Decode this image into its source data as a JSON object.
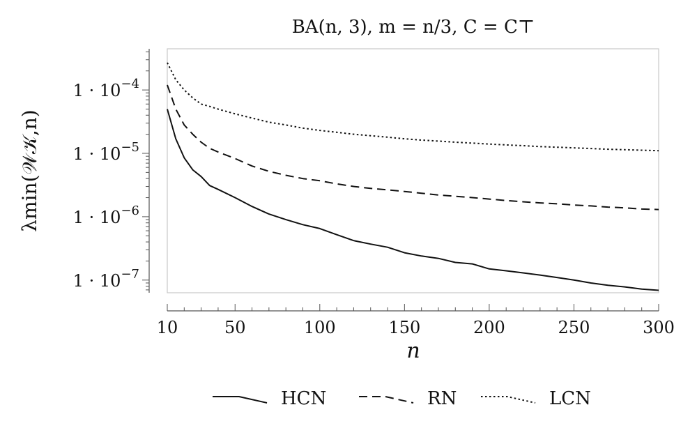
{
  "chart_data": {
    "type": "line",
    "title": "BA(n, 3), m = n/3, C = C⊤",
    "xlabel": "n",
    "ylabel": "λmin(𝒲𝒦,n)",
    "xlim": [
      10,
      300
    ],
    "ylim_log10": [
      -7.2,
      -3.35
    ],
    "yscale": "log",
    "xticks": [
      10,
      50,
      100,
      150,
      200,
      250,
      300
    ],
    "yticks": [
      {
        "value": 1e-07,
        "base": "1 · 10",
        "exp": "−7"
      },
      {
        "value": 1e-06,
        "base": "1 · 10",
        "exp": "−6"
      },
      {
        "value": 1e-05,
        "base": "1 · 10",
        "exp": "−5"
      },
      {
        "value": 0.0001,
        "base": "1 · 10",
        "exp": "−4"
      }
    ],
    "legend_position": "bottom",
    "series": [
      {
        "name": "HCN",
        "style": "solid",
        "x": [
          10,
          15,
          20,
          25,
          30,
          35,
          40,
          50,
          60,
          70,
          80,
          90,
          100,
          110,
          120,
          130,
          140,
          150,
          160,
          170,
          180,
          190,
          200,
          210,
          220,
          230,
          240,
          250,
          260,
          270,
          280,
          290,
          300
        ],
        "values": [
          5e-05,
          1.7e-05,
          8.5e-06,
          5.5e-06,
          4.3e-06,
          3.1e-06,
          2.7e-06,
          2e-06,
          1.45e-06,
          1.1e-06,
          9e-07,
          7.5e-07,
          6.5e-07,
          5.2e-07,
          4.2e-07,
          3.7e-07,
          3.3e-07,
          2.7e-07,
          2.4e-07,
          2.2e-07,
          1.9e-07,
          1.8e-07,
          1.5e-07,
          1.4e-07,
          1.3e-07,
          1.2e-07,
          1.1e-07,
          1e-07,
          9e-08,
          8.3e-08,
          7.8e-08,
          7.2e-08,
          6.9e-08
        ]
      },
      {
        "name": "RN",
        "style": "dashed",
        "x": [
          10,
          15,
          20,
          25,
          30,
          35,
          40,
          50,
          60,
          70,
          80,
          90,
          100,
          110,
          120,
          130,
          140,
          150,
          160,
          170,
          180,
          190,
          200,
          210,
          220,
          230,
          240,
          250,
          260,
          270,
          280,
          290,
          300
        ],
        "values": [
          0.00012,
          5e-05,
          2.8e-05,
          2e-05,
          1.5e-05,
          1.2e-05,
          1.05e-05,
          8.3e-06,
          6.3e-06,
          5.2e-06,
          4.5e-06,
          4e-06,
          3.7e-06,
          3.3e-06,
          3e-06,
          2.8e-06,
          2.65e-06,
          2.5e-06,
          2.35e-06,
          2.2e-06,
          2.1e-06,
          2e-06,
          1.9e-06,
          1.8e-06,
          1.72e-06,
          1.65e-06,
          1.6e-06,
          1.53e-06,
          1.48e-06,
          1.42e-06,
          1.38e-06,
          1.32e-06,
          1.3e-06
        ]
      },
      {
        "name": "LCN",
        "style": "dotted",
        "x": [
          10,
          15,
          20,
          25,
          30,
          35,
          40,
          50,
          60,
          70,
          80,
          90,
          100,
          110,
          120,
          130,
          140,
          150,
          160,
          170,
          180,
          190,
          200,
          210,
          220,
          230,
          240,
          250,
          260,
          270,
          280,
          290,
          300
        ],
        "values": [
          0.00027,
          0.000145,
          0.0001,
          7.5e-05,
          6e-05,
          5.5e-05,
          5e-05,
          4.2e-05,
          3.6e-05,
          3.1e-05,
          2.8e-05,
          2.5e-05,
          2.3e-05,
          2.15e-05,
          2e-05,
          1.9e-05,
          1.8e-05,
          1.7e-05,
          1.62e-05,
          1.56e-05,
          1.5e-05,
          1.45e-05,
          1.4e-05,
          1.36e-05,
          1.32e-05,
          1.28e-05,
          1.25e-05,
          1.22e-05,
          1.19e-05,
          1.16e-05,
          1.14e-05,
          1.12e-05,
          1.1e-05
        ]
      }
    ]
  }
}
